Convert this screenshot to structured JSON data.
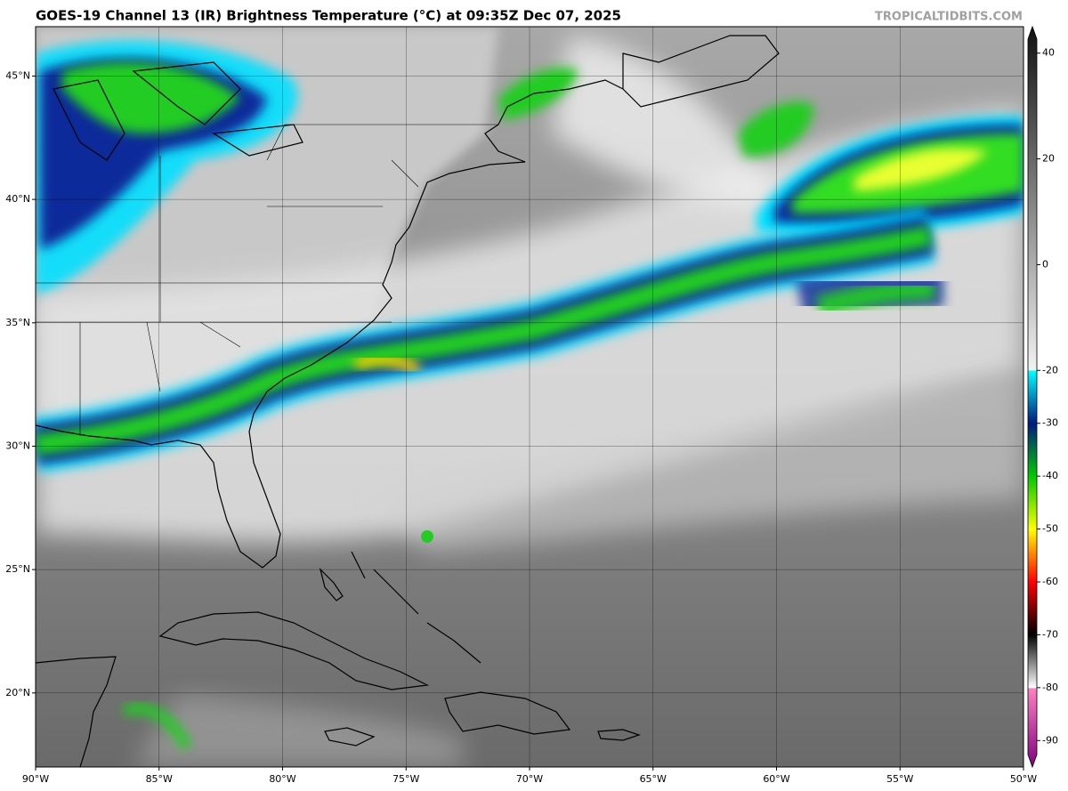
{
  "header": {
    "title": "GOES-19 Channel 13 (IR) Brightness Temperature (°C) at 09:35Z Dec 07, 2025",
    "credit": "TROPICALTIDBITS.COM"
  },
  "map": {
    "lonlim": [
      -90,
      -50
    ],
    "latlim": [
      17,
      47
    ],
    "grid": true,
    "lat_ticks": [
      {
        "value": 45,
        "label": "45°N"
      },
      {
        "value": 40,
        "label": "40°N"
      },
      {
        "value": 35,
        "label": "35°N"
      },
      {
        "value": 30,
        "label": "30°N"
      },
      {
        "value": 25,
        "label": "25°N"
      },
      {
        "value": 20,
        "label": "20°N"
      }
    ],
    "lon_ticks": [
      {
        "value": -90,
        "label": "90°W"
      },
      {
        "value": -85,
        "label": "85°W"
      },
      {
        "value": -80,
        "label": "80°W"
      },
      {
        "value": -75,
        "label": "75°W"
      },
      {
        "value": -70,
        "label": "70°W"
      },
      {
        "value": -65,
        "label": "65°W"
      },
      {
        "value": -60,
        "label": "60°W"
      },
      {
        "value": -55,
        "label": "55°W"
      },
      {
        "value": -50,
        "label": "50°W"
      }
    ]
  },
  "colorbar": {
    "lim": [
      -95,
      45
    ],
    "ticks": [
      40,
      20,
      0,
      -20,
      -30,
      -40,
      -50,
      -60,
      -70,
      -80,
      -90
    ]
  }
}
